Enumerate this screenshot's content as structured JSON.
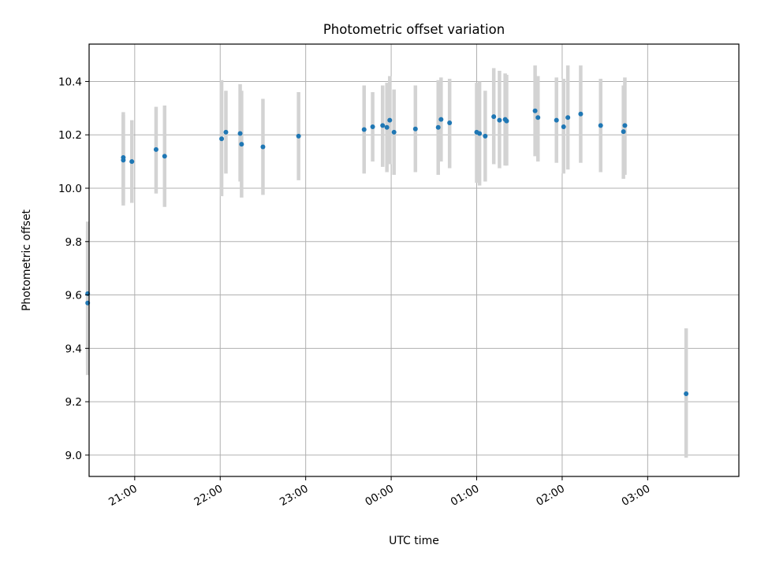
{
  "chart_data": {
    "type": "scatter",
    "title": "Photometric offset variation",
    "xlabel": "UTC time",
    "ylabel": "Photometric offset",
    "x_unit": "hours (UTC, past midnight)",
    "xlim": [
      "20:28",
      "04:04"
    ],
    "ylim": [
      8.92,
      10.54
    ],
    "grid": true,
    "legend": "none",
    "x_ticks": [
      {
        "value": "21:00",
        "label": "21:00"
      },
      {
        "value": "22:00",
        "label": "22:00"
      },
      {
        "value": "23:00",
        "label": "23:00"
      },
      {
        "value": "00:00",
        "label": "00:00"
      },
      {
        "value": "01:00",
        "label": "01:00"
      },
      {
        "value": "02:00",
        "label": "02:00"
      },
      {
        "value": "03:00",
        "label": "03:00"
      }
    ],
    "y_ticks": [
      {
        "value": 9.0,
        "label": "9.0"
      },
      {
        "value": 9.2,
        "label": "9.2"
      },
      {
        "value": 9.4,
        "label": "9.4"
      },
      {
        "value": 9.6,
        "label": "9.6"
      },
      {
        "value": 9.8,
        "label": "9.8"
      },
      {
        "value": 10.0,
        "label": "10.0"
      },
      {
        "value": 10.2,
        "label": "10.2"
      },
      {
        "value": 10.4,
        "label": "10.4"
      }
    ],
    "colors": {
      "point": "#1f77b4",
      "errorbar": "#d3d3d3",
      "grid": "#b0b0b0"
    },
    "points": [
      {
        "x": "20:27",
        "y": 9.605,
        "lo": 9.335,
        "hi": 9.875
      },
      {
        "x": "20:27",
        "y": 9.57,
        "lo": 9.3,
        "hi": 9.84
      },
      {
        "x": "20:52",
        "y": 10.115,
        "lo": 9.945,
        "hi": 10.285
      },
      {
        "x": "20:52",
        "y": 10.105,
        "lo": 9.935,
        "hi": 10.275
      },
      {
        "x": "20:58",
        "y": 10.1,
        "lo": 9.945,
        "hi": 10.255
      },
      {
        "x": "21:15",
        "y": 10.145,
        "lo": 9.98,
        "hi": 10.305
      },
      {
        "x": "21:21",
        "y": 10.12,
        "lo": 9.93,
        "hi": 10.31
      },
      {
        "x": "22:01",
        "y": 10.185,
        "lo": 9.97,
        "hi": 10.405
      },
      {
        "x": "22:04",
        "y": 10.21,
        "lo": 10.055,
        "hi": 10.365
      },
      {
        "x": "22:14",
        "y": 10.205,
        "lo": 10.025,
        "hi": 10.39
      },
      {
        "x": "22:15",
        "y": 10.165,
        "lo": 9.965,
        "hi": 10.365
      },
      {
        "x": "22:30",
        "y": 10.155,
        "lo": 9.975,
        "hi": 10.335
      },
      {
        "x": "22:55",
        "y": 10.195,
        "lo": 10.03,
        "hi": 10.36
      },
      {
        "x": "23:41",
        "y": 10.22,
        "lo": 10.055,
        "hi": 10.385
      },
      {
        "x": "23:47",
        "y": 10.23,
        "lo": 10.1,
        "hi": 10.36
      },
      {
        "x": "23:54",
        "y": 10.235,
        "lo": 10.08,
        "hi": 10.385
      },
      {
        "x": "23:57",
        "y": 10.228,
        "lo": 10.06,
        "hi": 10.395
      },
      {
        "x": "23:59",
        "y": 10.255,
        "lo": 10.09,
        "hi": 10.42
      },
      {
        "x": "00:02",
        "y": 10.21,
        "lo": 10.05,
        "hi": 10.37
      },
      {
        "x": "00:17",
        "y": 10.222,
        "lo": 10.06,
        "hi": 10.385
      },
      {
        "x": "00:33",
        "y": 10.228,
        "lo": 10.05,
        "hi": 10.405
      },
      {
        "x": "00:35",
        "y": 10.258,
        "lo": 10.1,
        "hi": 10.415
      },
      {
        "x": "00:41",
        "y": 10.245,
        "lo": 10.075,
        "hi": 10.41
      },
      {
        "x": "01:00",
        "y": 10.21,
        "lo": 10.02,
        "hi": 10.395
      },
      {
        "x": "01:02",
        "y": 10.205,
        "lo": 10.01,
        "hi": 10.4
      },
      {
        "x": "01:06",
        "y": 10.195,
        "lo": 10.025,
        "hi": 10.365
      },
      {
        "x": "01:12",
        "y": 10.268,
        "lo": 10.09,
        "hi": 10.45
      },
      {
        "x": "01:16",
        "y": 10.255,
        "lo": 10.075,
        "hi": 10.44
      },
      {
        "x": "01:20",
        "y": 10.258,
        "lo": 10.085,
        "hi": 10.43
      },
      {
        "x": "01:21",
        "y": 10.252,
        "lo": 10.085,
        "hi": 10.425
      },
      {
        "x": "01:41",
        "y": 10.29,
        "lo": 10.12,
        "hi": 10.46
      },
      {
        "x": "01:43",
        "y": 10.265,
        "lo": 10.1,
        "hi": 10.42
      },
      {
        "x": "01:56",
        "y": 10.255,
        "lo": 10.095,
        "hi": 10.415
      },
      {
        "x": "02:01",
        "y": 10.23,
        "lo": 10.055,
        "hi": 10.41
      },
      {
        "x": "02:04",
        "y": 10.265,
        "lo": 10.07,
        "hi": 10.46
      },
      {
        "x": "02:13",
        "y": 10.278,
        "lo": 10.095,
        "hi": 10.46
      },
      {
        "x": "02:27",
        "y": 10.235,
        "lo": 10.06,
        "hi": 10.41
      },
      {
        "x": "02:43",
        "y": 10.212,
        "lo": 10.035,
        "hi": 10.385
      },
      {
        "x": "02:44",
        "y": 10.235,
        "lo": 10.05,
        "hi": 10.415
      },
      {
        "x": "03:27",
        "y": 9.23,
        "lo": 8.99,
        "hi": 9.475
      }
    ]
  }
}
